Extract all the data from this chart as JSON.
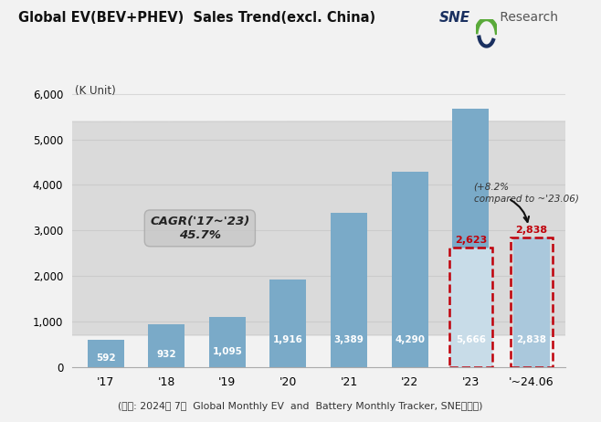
{
  "title": "Global EV(BEV+PHEV)  Sales Trend(excl. China)",
  "y_unit_label": "(K Unit)",
  "categories": [
    "'17",
    "'18",
    "'19",
    "'20",
    "'21",
    "'22",
    "'23",
    "'~24.06"
  ],
  "values": [
    592,
    932,
    1095,
    1916,
    3389,
    4290,
    5666,
    2838
  ],
  "bar_color_main": "#7aaac8",
  "bar_color_light": "#aac8dc",
  "ylim": [
    0,
    6300
  ],
  "yticks": [
    0,
    1000,
    2000,
    3000,
    4000,
    5000,
    6000
  ],
  "value_labels": [
    "592",
    "932",
    "1,095",
    "1,916",
    "3,389",
    "4,290",
    "5,666",
    "2,838"
  ],
  "half_23": 2623,
  "half_24": 2838,
  "half_label_23": "2,623",
  "half_label_24": "2,838",
  "cagr_text": "CAGR('17~'23)\n45.7%",
  "annotation_text": "(+8.2%\ncompared to ~'23.06)",
  "source_text": "(출처: 2024년 7월  Global Monthly EV  and  Battery Monthly Tracker, SNE리서치)",
  "bg_color": "#f2f2f2",
  "plot_bg_color": "#f2f2f2",
  "grid_color": "#d8d8d8",
  "dashed_rect_color": "#c0000a",
  "text_white": "#ffffff",
  "text_dark": "#333333"
}
